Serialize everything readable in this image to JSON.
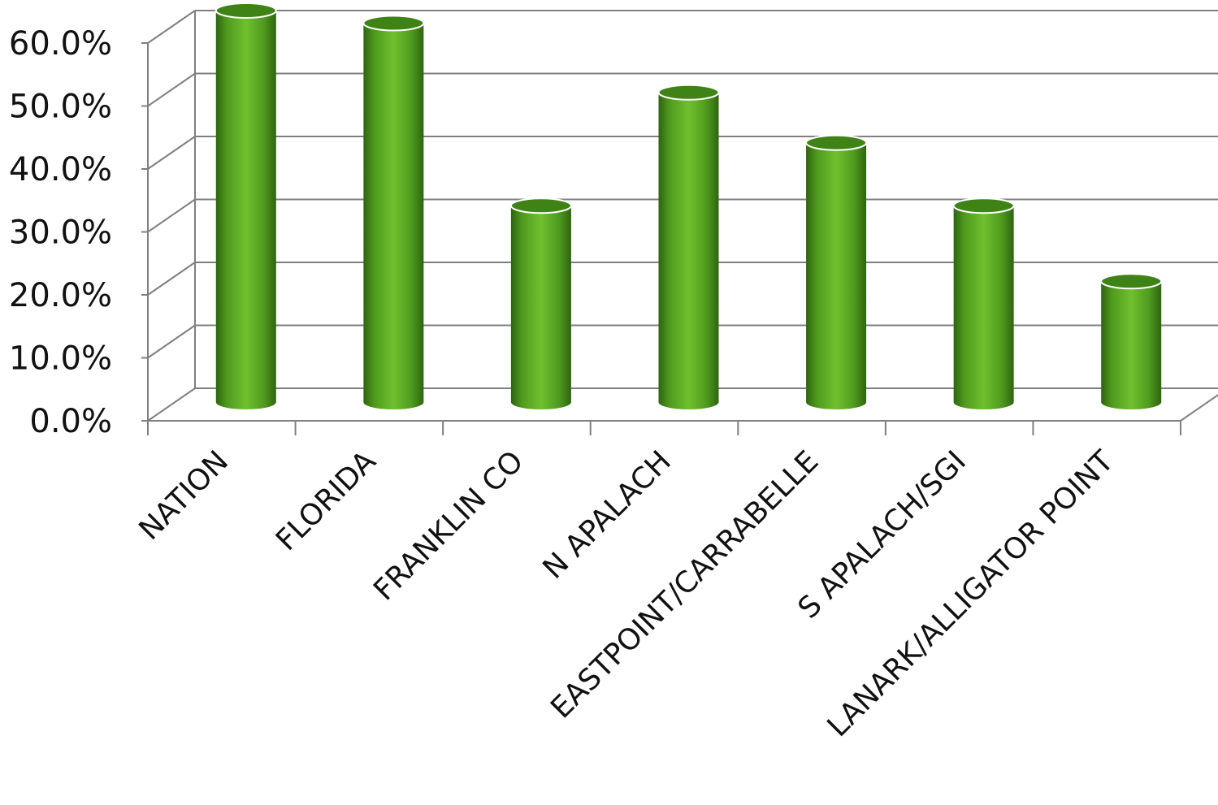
{
  "chart_data": {
    "type": "bar",
    "style": "3d-cylinder",
    "categories": [
      "NATION",
      "FLORIDA",
      "FRANKLIN CO",
      "N APALACH",
      "EASTPOINT/CARRABELLE",
      "S APALACH/SGI",
      "LANARK/ALLIGATOR POINT"
    ],
    "series": [
      {
        "values": [
          60.0,
          58.0,
          29.0,
          47.0,
          39.0,
          29.0,
          17.0
        ]
      }
    ],
    "ylim": [
      0,
      60
    ],
    "yticks": [
      "0.0%",
      "10.0%",
      "20.0%",
      "30.0%",
      "40.0%",
      "50.0%",
      "60.0%"
    ],
    "grid": true,
    "legend": "none",
    "colors": {
      "bar_light": "#6fc02e",
      "bar_mid": "#4f9a1e",
      "bar_dark": "#2f6410",
      "grid": "#7f7f7f"
    }
  }
}
